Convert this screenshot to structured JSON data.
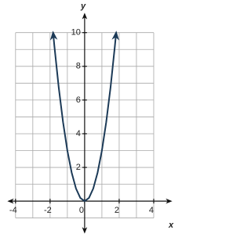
{
  "chart_data": {
    "type": "line",
    "xlabel": "x",
    "ylabel": "y",
    "xlim": [
      -4.4,
      5
    ],
    "ylim": [
      -1.85,
      11.1
    ],
    "xticks": [
      -4,
      -2,
      0,
      2,
      4
    ],
    "yticks": [
      2,
      4,
      6,
      8,
      10
    ],
    "xminor": [
      -4,
      -3,
      -2,
      -1,
      0,
      1,
      2,
      3,
      4
    ],
    "yminor": [
      -1,
      0,
      1,
      2,
      3,
      4,
      5,
      6,
      7,
      8,
      9,
      10
    ],
    "grid": true,
    "series": [
      {
        "color": "#1c3a57",
        "x": [
          -1.826,
          -1.75,
          -1.5,
          -1.25,
          -1,
          -0.75,
          -0.5,
          -0.25,
          0,
          0.25,
          0.5,
          0.75,
          1,
          1.25,
          1.5,
          1.75,
          1.826
        ],
        "values": [
          10,
          9.19,
          6.75,
          4.69,
          3,
          1.69,
          0.75,
          0.19,
          0,
          0.19,
          0.75,
          1.69,
          3,
          4.69,
          6.75,
          9.19,
          10
        ]
      }
    ]
  }
}
